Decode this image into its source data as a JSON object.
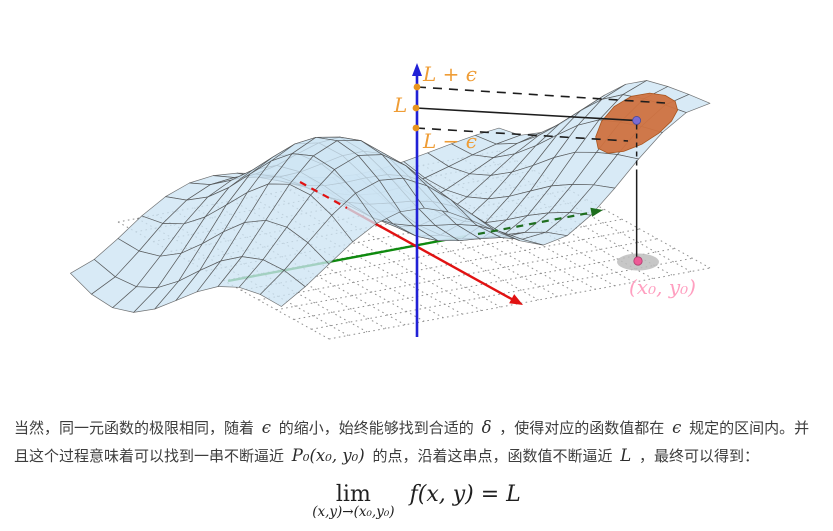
{
  "figure": {
    "labels": {
      "l_plus_eps": "L + ϵ",
      "l": "L",
      "l_minus_eps": "L − ϵ",
      "point": "(x₀, y₀)"
    },
    "colors": {
      "surface": "#cde4f3",
      "wire": "#474747",
      "grid": "#8f8f8f",
      "x_axis_red": "#e11212",
      "y_axis_green": "#0e8a0e",
      "y_axis_hidden_green": "#1e6e1e",
      "z_axis_blue": "#2121d6",
      "marker_orange": "#e8941c",
      "label_orange": "#ef9d36",
      "patch": "#cf7240",
      "patch_edge": "#a8551f",
      "purple_point": "#7a6cd4",
      "pink_point": "#ee5a96",
      "pink_label": "#ff9fc0",
      "shadow": "#bdbdbd",
      "black_line": "#1d1d1d"
    }
  },
  "paragraph": {
    "segments": [
      {
        "text": "当然，同一元函数的极限相同，随着 ",
        "math": false
      },
      {
        "text": "ϵ",
        "math": true
      },
      {
        "text": " 的缩小，始终能够找到合适的 ",
        "math": false
      },
      {
        "text": "δ",
        "math": true
      },
      {
        "text": " ，使得对应的函数值都在 ",
        "math": false
      },
      {
        "text": "ϵ",
        "math": true
      },
      {
        "text": " 规定的区间内。并且这个过程意味着可以找到一串不断逼近 ",
        "math": false
      },
      {
        "text": "P₀(x₀, y₀)",
        "math": true
      },
      {
        "text": " 的点，沿着这串点，函数值不断逼近 ",
        "math": false
      },
      {
        "text": "L",
        "math": true
      },
      {
        "text": " ，最终可以得到：",
        "math": false
      }
    ]
  },
  "formula": {
    "lim": "lim",
    "subscript": "(x,y)→(x₀,y₀)",
    "body": "f(x, y) = L"
  }
}
